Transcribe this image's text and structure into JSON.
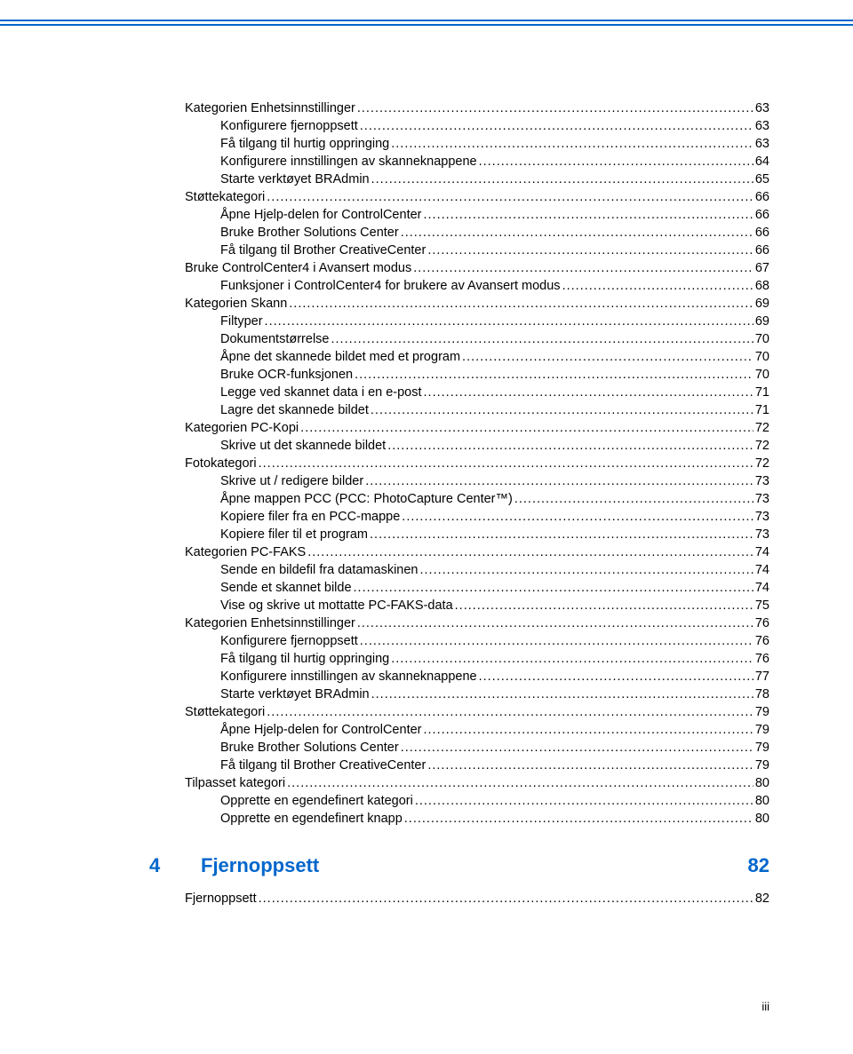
{
  "rule": {
    "top1": 22,
    "top2": 27,
    "color": "#0066cc"
  },
  "typography": {
    "body_size": 14.5,
    "body_color": "#000000",
    "line_height": 20,
    "section_size": 22,
    "section_weight": "bold",
    "section_color": "#0066cc",
    "pagenum_size": 13,
    "dot_char": "."
  },
  "toc": [
    {
      "indent": 0,
      "title": "Kategorien Enhetsinnstillinger",
      "page": "63"
    },
    {
      "indent": 1,
      "title": "Konfigurere fjernoppsett",
      "page": "63"
    },
    {
      "indent": 1,
      "title": "Få tilgang til hurtig oppringing",
      "page": "63"
    },
    {
      "indent": 1,
      "title": "Konfigurere innstillingen av skanneknappene",
      "page": "64"
    },
    {
      "indent": 1,
      "title": "Starte verktøyet BRAdmin",
      "page": "65"
    },
    {
      "indent": 0,
      "title": "Støttekategori",
      "page": "66"
    },
    {
      "indent": 1,
      "title": "Åpne Hjelp-delen for ControlCenter",
      "page": "66"
    },
    {
      "indent": 1,
      "title": "Bruke Brother Solutions Center",
      "page": "66"
    },
    {
      "indent": 1,
      "title": "Få tilgang til Brother CreativeCenter",
      "page": "66"
    },
    {
      "indent": 0,
      "title": "Bruke ControlCenter4 i Avansert modus",
      "page": "67"
    },
    {
      "indent": 1,
      "title": "Funksjoner i ControlCenter4 for brukere av Avansert modus",
      "page": "68"
    },
    {
      "indent": 0,
      "title": "Kategorien Skann",
      "page": "69"
    },
    {
      "indent": 1,
      "title": "Filtyper",
      "page": "69"
    },
    {
      "indent": 1,
      "title": "Dokumentstørrelse",
      "page": "70"
    },
    {
      "indent": 1,
      "title": "Åpne det skannede bildet med et program",
      "page": "70"
    },
    {
      "indent": 1,
      "title": "Bruke OCR-funksjonen",
      "page": "70"
    },
    {
      "indent": 1,
      "title": "Legge ved skannet data i en e-post",
      "page": "71"
    },
    {
      "indent": 1,
      "title": "Lagre det skannede bildet",
      "page": "71"
    },
    {
      "indent": 0,
      "title": "Kategorien PC-Kopi",
      "page": "72"
    },
    {
      "indent": 1,
      "title": "Skrive ut det skannede bildet",
      "page": "72"
    },
    {
      "indent": 0,
      "title": "Fotokategori",
      "page": "72"
    },
    {
      "indent": 1,
      "title": "Skrive ut / redigere bilder",
      "page": "73"
    },
    {
      "indent": 1,
      "title": "Åpne mappen PCC (PCC: PhotoCapture Center™)",
      "page": "73"
    },
    {
      "indent": 1,
      "title": "Kopiere filer fra en PCC-mappe",
      "page": "73"
    },
    {
      "indent": 1,
      "title": "Kopiere filer til et program",
      "page": "73"
    },
    {
      "indent": 0,
      "title": "Kategorien PC-FAKS",
      "page": "74"
    },
    {
      "indent": 1,
      "title": "Sende en bildefil fra datamaskinen",
      "page": "74"
    },
    {
      "indent": 1,
      "title": "Sende et skannet bilde",
      "page": "74"
    },
    {
      "indent": 1,
      "title": "Vise og skrive ut mottatte PC-FAKS-data",
      "page": "75"
    },
    {
      "indent": 0,
      "title": "Kategorien Enhetsinnstillinger",
      "page": "76"
    },
    {
      "indent": 1,
      "title": "Konfigurere fjernoppsett",
      "page": "76"
    },
    {
      "indent": 1,
      "title": "Få tilgang til hurtig oppringing",
      "page": "76"
    },
    {
      "indent": 1,
      "title": "Konfigurere innstillingen av skanneknappene",
      "page": "77"
    },
    {
      "indent": 1,
      "title": "Starte verktøyet BRAdmin",
      "page": "78"
    },
    {
      "indent": 0,
      "title": "Støttekategori",
      "page": "79"
    },
    {
      "indent": 1,
      "title": "Åpne Hjelp-delen for ControlCenter",
      "page": "79"
    },
    {
      "indent": 1,
      "title": "Bruke Brother Solutions Center",
      "page": "79"
    },
    {
      "indent": 1,
      "title": "Få tilgang til Brother CreativeCenter",
      "page": "79"
    },
    {
      "indent": 0,
      "title": "Tilpasset kategori",
      "page": "80"
    },
    {
      "indent": 1,
      "title": "Opprette en egendefinert kategori",
      "page": "80"
    },
    {
      "indent": 1,
      "title": "Opprette en egendefinert knapp",
      "page": "80"
    }
  ],
  "section": {
    "num": "4",
    "title": "Fjernoppsett",
    "page": "82"
  },
  "toc2": [
    {
      "indent": 0,
      "title": "Fjernoppsett",
      "page": "82"
    }
  ],
  "page_number": "iii"
}
